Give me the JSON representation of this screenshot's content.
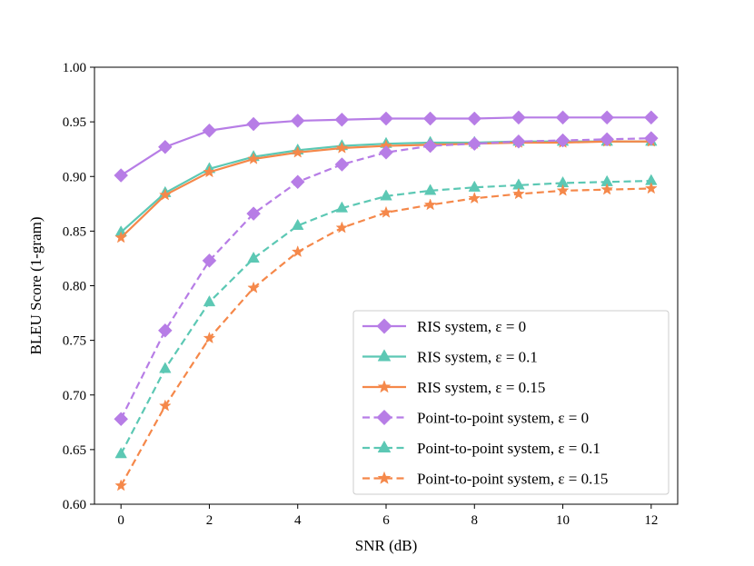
{
  "chart_data": {
    "type": "line",
    "xlabel": "SNR (dB)",
    "ylabel": "BLEU Score (1-gram)",
    "xlim": [
      -0.6,
      12.6
    ],
    "ylim": [
      0.6,
      1.0
    ],
    "xticks": [
      0,
      2,
      4,
      6,
      8,
      10,
      12
    ],
    "xtick_labels": [
      "0",
      "2",
      "4",
      "6",
      "8",
      "10",
      "12"
    ],
    "yticks": [
      0.6,
      0.65,
      0.7,
      0.75,
      0.8,
      0.85,
      0.9,
      0.95,
      1.0
    ],
    "ytick_labels": [
      "0.60",
      "0.65",
      "0.70",
      "0.75",
      "0.80",
      "0.85",
      "0.90",
      "0.95",
      "1.00"
    ],
    "grid": false,
    "legend_position": "lower-right",
    "x": [
      0,
      1,
      2,
      3,
      4,
      5,
      6,
      7,
      8,
      9,
      10,
      11,
      12
    ],
    "series": [
      {
        "name": "RIS system, ε = 0",
        "color": "#b77de6",
        "marker": "diamond",
        "linestyle": "solid",
        "values": [
          0.901,
          0.927,
          0.942,
          0.948,
          0.951,
          0.952,
          0.953,
          0.953,
          0.953,
          0.954,
          0.954,
          0.954,
          0.954
        ]
      },
      {
        "name": "RIS system, ε = 0.1",
        "color": "#5cc8b4",
        "marker": "triangle",
        "linestyle": "solid",
        "values": [
          0.849,
          0.885,
          0.907,
          0.918,
          0.924,
          0.928,
          0.93,
          0.931,
          0.931,
          0.932,
          0.932,
          0.932,
          0.932
        ]
      },
      {
        "name": "RIS system, ε = 0.15",
        "color": "#f5884a",
        "marker": "star",
        "linestyle": "solid",
        "values": [
          0.844,
          0.883,
          0.904,
          0.916,
          0.922,
          0.926,
          0.928,
          0.929,
          0.93,
          0.931,
          0.931,
          0.932,
          0.932
        ]
      },
      {
        "name": "Point-to-point system, ε = 0",
        "color": "#b77de6",
        "marker": "diamond",
        "linestyle": "dashed",
        "values": [
          0.678,
          0.759,
          0.823,
          0.866,
          0.895,
          0.911,
          0.922,
          0.928,
          0.93,
          0.932,
          0.933,
          0.934,
          0.935
        ]
      },
      {
        "name": "Point-to-point system, ε = 0.1",
        "color": "#5cc8b4",
        "marker": "triangle",
        "linestyle": "dashed",
        "values": [
          0.646,
          0.724,
          0.785,
          0.825,
          0.855,
          0.871,
          0.882,
          0.887,
          0.89,
          0.892,
          0.894,
          0.895,
          0.896
        ]
      },
      {
        "name": "Point-to-point system, ε = 0.15",
        "color": "#f5884a",
        "marker": "star",
        "linestyle": "dashed",
        "values": [
          0.617,
          0.69,
          0.752,
          0.798,
          0.831,
          0.853,
          0.867,
          0.874,
          0.88,
          0.884,
          0.887,
          0.888,
          0.889
        ]
      }
    ]
  }
}
